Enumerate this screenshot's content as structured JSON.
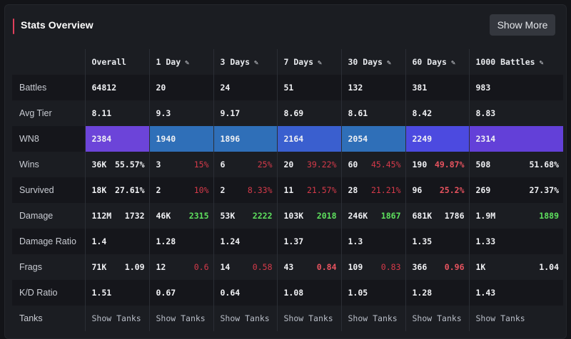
{
  "header": {
    "title": "Stats Overview",
    "show_more_label": "Show More"
  },
  "columns": [
    {
      "label": "Overall",
      "editable": false
    },
    {
      "label": "1 Day",
      "editable": true
    },
    {
      "label": "3 Days",
      "editable": true
    },
    {
      "label": "7 Days",
      "editable": true
    },
    {
      "label": "30 Days",
      "editable": true
    },
    {
      "label": "60 Days",
      "editable": true
    },
    {
      "label": "1000 Battles",
      "editable": true
    }
  ],
  "rows": {
    "battles": {
      "label": "Battles",
      "values": [
        "64812",
        "20",
        "24",
        "51",
        "132",
        "381",
        "983"
      ]
    },
    "avg_tier": {
      "label": "Avg Tier",
      "values": [
        "8.11",
        "9.3",
        "9.17",
        "8.69",
        "8.61",
        "8.42",
        "8.83"
      ]
    },
    "wn8": {
      "label": "WN8",
      "values": [
        "2384",
        "1940",
        "1896",
        "2164",
        "2054",
        "2249",
        "2314"
      ],
      "colors": [
        "#6c44d9",
        "#2f6fb8",
        "#2f6fb8",
        "#3a5fcf",
        "#2f6fb8",
        "#4c4ae0",
        "#6340d8"
      ]
    },
    "wins": {
      "label": "Wins",
      "values": [
        [
          "36K",
          "55.57%"
        ],
        [
          "3",
          "15%"
        ],
        [
          "6",
          "25%"
        ],
        [
          "20",
          "39.22%"
        ],
        [
          "60",
          "45.45%"
        ],
        [
          "190",
          "49.87%"
        ],
        [
          "508",
          "51.68%"
        ]
      ]
    },
    "survived": {
      "label": "Survived",
      "values": [
        [
          "18K",
          "27.61%"
        ],
        [
          "2",
          "10%"
        ],
        [
          "2",
          "8.33%"
        ],
        [
          "11",
          "21.57%"
        ],
        [
          "28",
          "21.21%"
        ],
        [
          "96",
          "25.2%"
        ],
        [
          "269",
          "27.37%"
        ]
      ]
    },
    "damage": {
      "label": "Damage",
      "values": [
        [
          "112M",
          "1732"
        ],
        [
          "46K",
          "2315"
        ],
        [
          "53K",
          "2222"
        ],
        [
          "103K",
          "2018"
        ],
        [
          "246K",
          "1867"
        ],
        [
          "681K",
          "1786"
        ],
        [
          "1.9M",
          "1889"
        ]
      ]
    },
    "damage_ratio": {
      "label": "Damage Ratio",
      "values": [
        "1.4",
        "1.28",
        "1.24",
        "1.37",
        "1.3",
        "1.35",
        "1.33"
      ]
    },
    "frags": {
      "label": "Frags",
      "values": [
        [
          "71K",
          "1.09"
        ],
        [
          "12",
          "0.6"
        ],
        [
          "14",
          "0.58"
        ],
        [
          "43",
          "0.84"
        ],
        [
          "109",
          "0.83"
        ],
        [
          "366",
          "0.96"
        ],
        [
          "1K",
          "1.04"
        ]
      ]
    },
    "kd_ratio": {
      "label": "K/D Ratio",
      "values": [
        "1.51",
        "0.67",
        "0.64",
        "1.08",
        "1.05",
        "1.28",
        "1.43"
      ]
    },
    "tanks": {
      "label": "Tanks",
      "link_label": "Show Tanks"
    }
  }
}
